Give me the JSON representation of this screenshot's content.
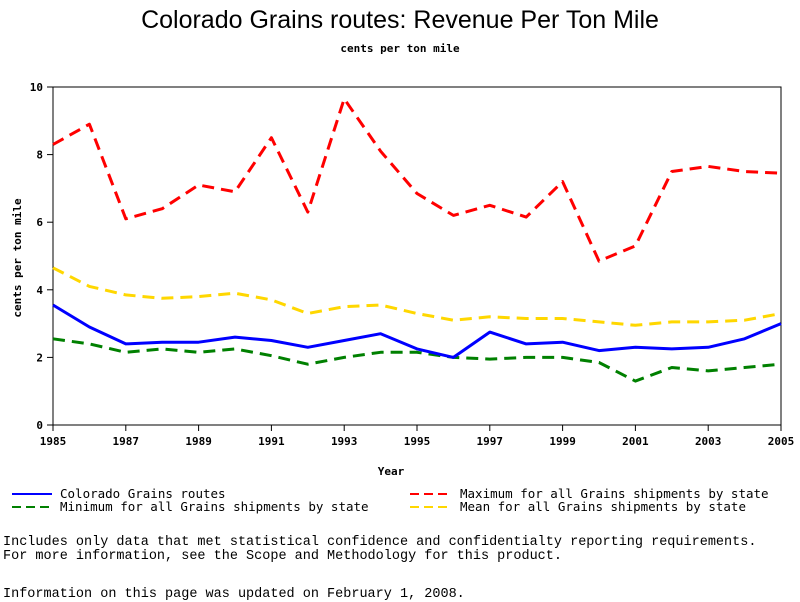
{
  "chart_data": {
    "type": "line",
    "title": "Colorado Grains routes: Revenue Per Ton Mile",
    "subtitle": "cents per ton mile",
    "xlabel": "Year",
    "ylabel": "cents per ton mile",
    "xlim": [
      1985,
      2005
    ],
    "ylim": [
      0,
      10
    ],
    "x_ticks": [
      "1985",
      "1987",
      "1989",
      "1991",
      "1993",
      "1995",
      "1997",
      "1999",
      "2001",
      "2003",
      "2005"
    ],
    "y_ticks": [
      "0",
      "2",
      "4",
      "6",
      "8",
      "10"
    ],
    "x": [
      1985,
      1986,
      1987,
      1988,
      1989,
      1990,
      1991,
      1992,
      1993,
      1994,
      1995,
      1996,
      1997,
      1998,
      1999,
      2000,
      2001,
      2002,
      2003,
      2004,
      2005
    ],
    "series": [
      {
        "name": "Colorado Grains routes",
        "color": "#0000ff",
        "style": "solid",
        "values": [
          3.55,
          2.9,
          2.4,
          2.45,
          2.45,
          2.6,
          2.5,
          2.3,
          2.5,
          2.7,
          2.25,
          2.0,
          2.75,
          2.4,
          2.45,
          2.2,
          2.3,
          2.25,
          2.3,
          2.55,
          3.0
        ]
      },
      {
        "name": "Maximum for all Grains shipments by state",
        "color": "#ff0000",
        "style": "dashed",
        "values": [
          8.3,
          8.9,
          6.1,
          6.4,
          7.1,
          6.9,
          8.5,
          6.3,
          9.65,
          8.1,
          6.85,
          6.2,
          6.5,
          6.15,
          7.2,
          4.85,
          5.3,
          7.5,
          7.65,
          7.5,
          7.45
        ]
      },
      {
        "name": "Minimum for all Grains shipments by state",
        "color": "#008000",
        "style": "dashed",
        "values": [
          2.55,
          2.4,
          2.15,
          2.25,
          2.15,
          2.25,
          2.05,
          1.8,
          2.0,
          2.15,
          2.15,
          2.0,
          1.95,
          2.0,
          2.0,
          1.85,
          1.3,
          1.7,
          1.6,
          1.7,
          1.8
        ]
      },
      {
        "name": "Mean for all Grains shipments by state",
        "color": "#ffd700",
        "style": "dashed",
        "values": [
          4.65,
          4.1,
          3.85,
          3.75,
          3.8,
          3.9,
          3.7,
          3.3,
          3.5,
          3.55,
          3.3,
          3.1,
          3.2,
          3.15,
          3.15,
          3.05,
          2.95,
          3.05,
          3.05,
          3.1,
          3.3
        ]
      }
    ],
    "grid": false,
    "legend": "bottom"
  },
  "notes": {
    "line1": "Includes only data that met statistical confidence and confidentialty reporting requirements.",
    "line2": "For more information, see the Scope and Methodology for this product.",
    "line3": "Information on this page was updated on February 1, 2008."
  }
}
